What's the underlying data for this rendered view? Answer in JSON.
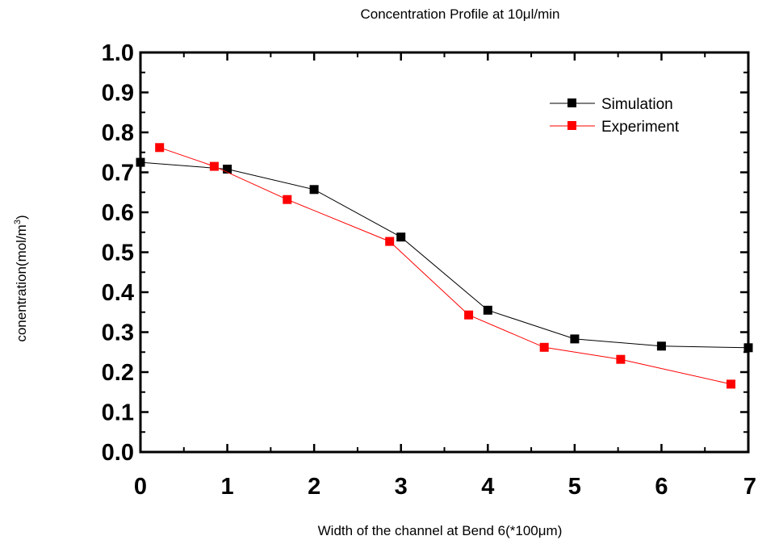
{
  "chart_data": {
    "type": "line",
    "title": "Concentration Profile at 10μl/min",
    "xlabel": "Width of the channel at Bend 6(*100μm)",
    "ylabel_main": "conentration(mol/m",
    "ylabel_sup": "3",
    "ylabel_tail": ")",
    "xlim": [
      0,
      7
    ],
    "ylim": [
      0.0,
      1.0
    ],
    "xticks": [
      0,
      1,
      2,
      3,
      4,
      5,
      6,
      7
    ],
    "xtick_labels": [
      "0",
      "1",
      "2",
      "3",
      "4",
      "5",
      "6",
      "7"
    ],
    "yticks": [
      0.0,
      0.1,
      0.2,
      0.3,
      0.4,
      0.5,
      0.6,
      0.7,
      0.8,
      0.9,
      1.0
    ],
    "ytick_labels": [
      "0.0",
      "0.1",
      "0.2",
      "0.3",
      "0.4",
      "0.5",
      "0.6",
      "0.7",
      "0.8",
      "0.9",
      "1.0"
    ],
    "grid": false,
    "legend_position": "top-right",
    "series": [
      {
        "name": "Simulation",
        "color": "#000000",
        "marker": "square",
        "x": [
          0,
          1,
          2,
          3,
          4,
          5,
          6,
          7
        ],
        "y": [
          0.725,
          0.708,
          0.657,
          0.538,
          0.355,
          0.283,
          0.265,
          0.261
        ]
      },
      {
        "name": "Experiment",
        "color": "#ff0000",
        "marker": "square",
        "x": [
          0.22,
          0.85,
          1.69,
          2.87,
          3.78,
          4.65,
          5.53,
          6.8
        ],
        "y": [
          0.762,
          0.715,
          0.632,
          0.527,
          0.343,
          0.262,
          0.232,
          0.17
        ]
      }
    ]
  }
}
